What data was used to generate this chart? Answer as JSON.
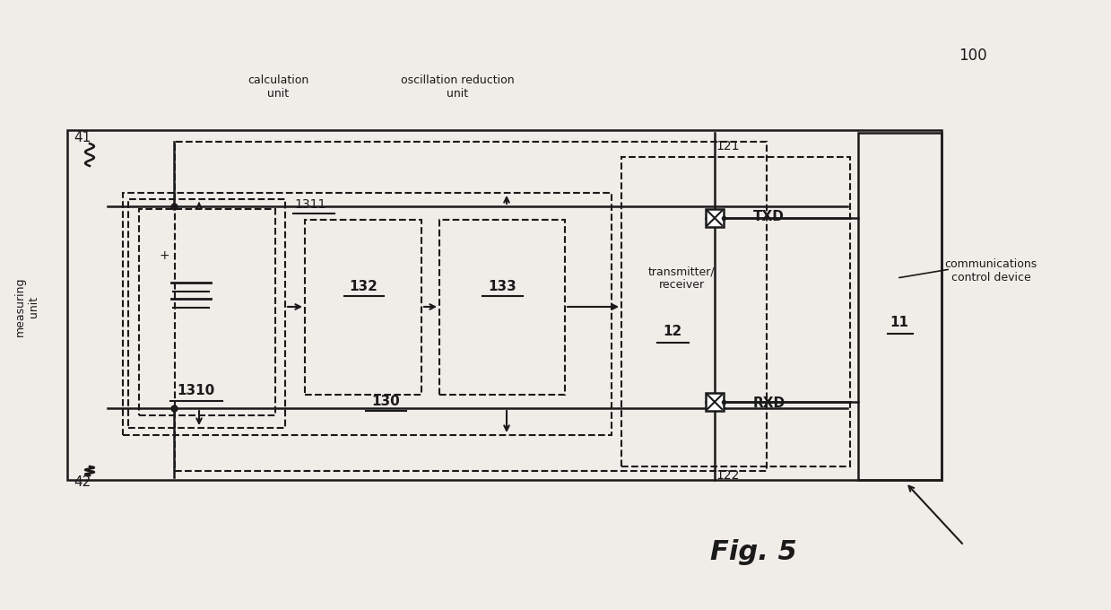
{
  "bg_color": "#f0ede8",
  "line_color": "#1a1a1a",
  "fig_label": "Fig. 5",
  "label_100": "100",
  "label_41": "41",
  "label_42": "42",
  "label_121": "121",
  "label_122": "122",
  "label_TXD": "TXD",
  "label_RXD": "RXD",
  "label_1310": "1310",
  "label_1311": "1311",
  "label_132": "132",
  "label_130": "130",
  "label_133": "133",
  "label_12": "12",
  "label_11": "11",
  "label_calc": "calculation\nunit",
  "label_osc": "oscillation reduction\nunit",
  "label_measuring": "measuring\nunit",
  "label_transmitter": "transmitter/\nreceiver",
  "label_comms": "communications\ncontrol device"
}
